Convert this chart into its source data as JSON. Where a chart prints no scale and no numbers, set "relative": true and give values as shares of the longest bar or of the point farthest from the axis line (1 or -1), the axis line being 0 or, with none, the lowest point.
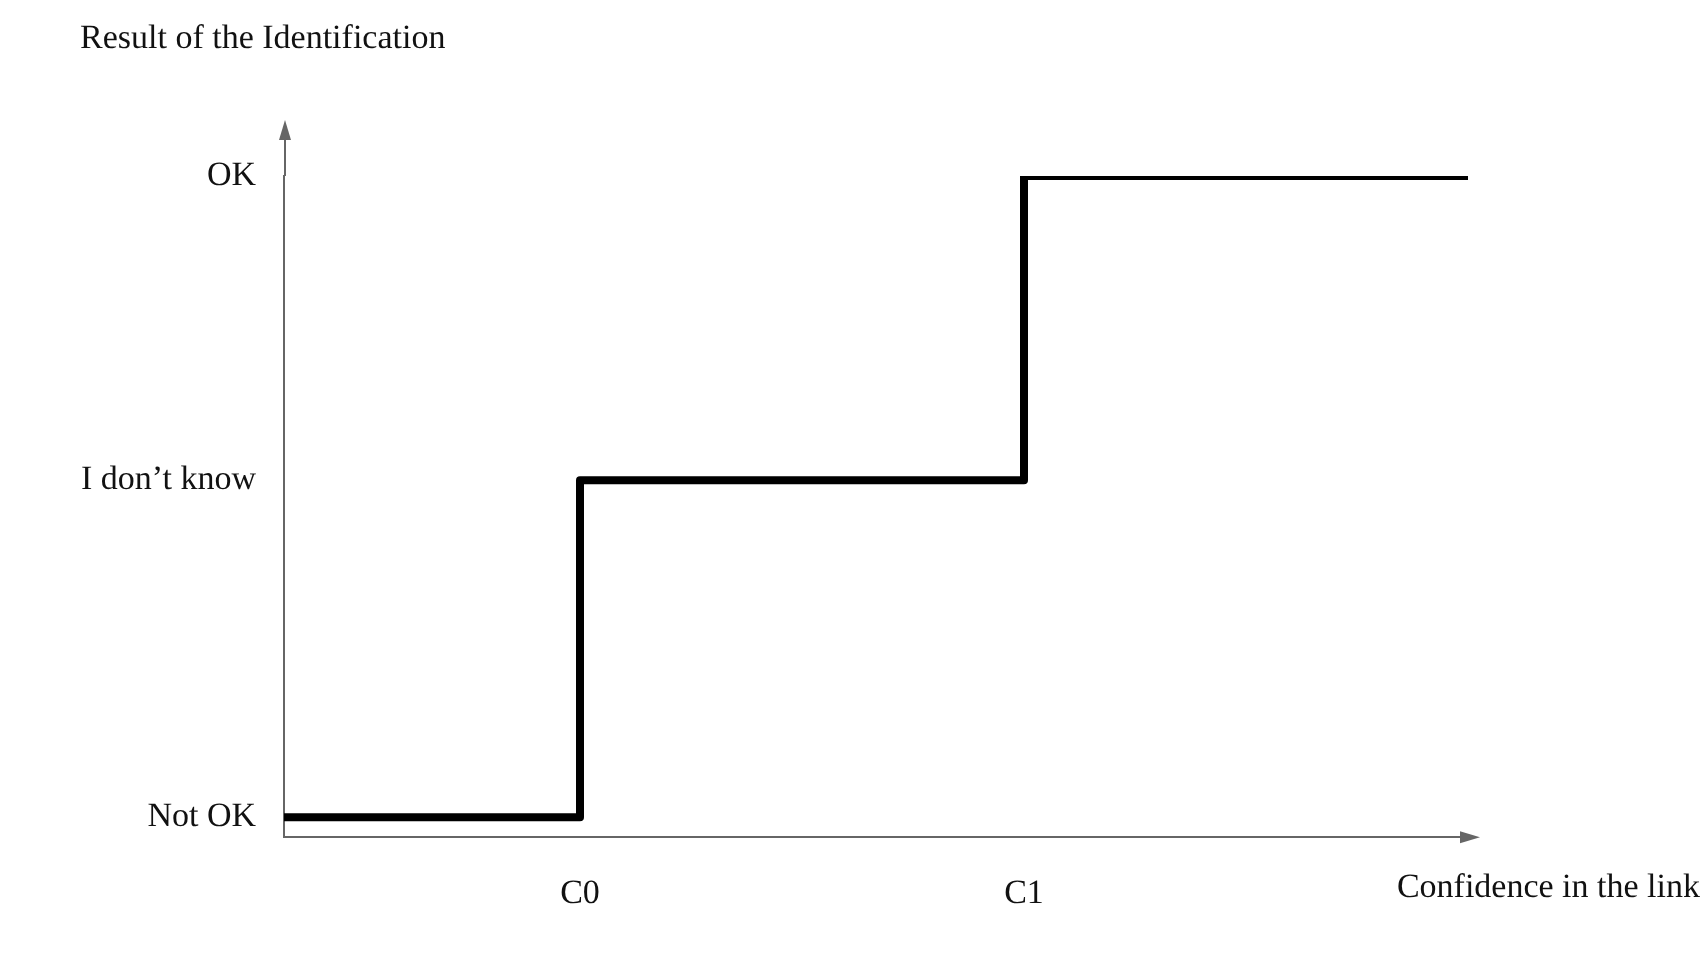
{
  "chart_data": {
    "type": "step",
    "ylabel": "Result of the Identification",
    "xlabel": "Confidence in the link",
    "categories": [
      null,
      null,
      "C0",
      null,
      null,
      "C1",
      null,
      null,
      null
    ],
    "relative": true,
    "series": [
      {
        "color": "#000000",
        "values": [
          0.03,
          0.03,
          0.54,
          0.54,
          0.54,
          1,
          1,
          1,
          1
        ]
      }
    ],
    "annotations": [
      "Not OK",
      "I don’t know",
      "OK"
    ],
    "grid": false,
    "legend": false,
    "marker": "none"
  }
}
